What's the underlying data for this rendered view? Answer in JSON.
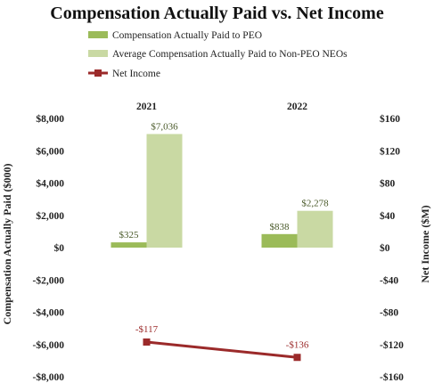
{
  "chart_data": {
    "type": "bar",
    "title": "Compensation Actually Paid vs. Net Income",
    "categories": [
      "2021",
      "2022"
    ],
    "series": [
      {
        "name": "Compensation Actually Paid to PEO",
        "kind": "bar",
        "axis": "left",
        "color": "#9bbb59",
        "values": [
          325,
          838
        ],
        "labels": [
          "$325",
          "$838"
        ]
      },
      {
        "name": "Average Compensation Actually Paid to Non-PEO NEOs",
        "kind": "bar",
        "axis": "left",
        "color": "#c9d9a3",
        "values": [
          7036,
          2278
        ],
        "labels": [
          "$7,036",
          "$2,278"
        ]
      },
      {
        "name": "Net Income",
        "kind": "line",
        "axis": "right",
        "color": "#9b2a2a",
        "values": [
          -117,
          -136
        ],
        "labels": [
          "-$117",
          "-$136"
        ]
      }
    ],
    "ylabel": "Compensation Actually Paid ($000)",
    "y2label": "Net Income ($M)",
    "ylim": [
      -8000,
      8000
    ],
    "y2lim": [
      -160,
      160
    ],
    "yticks": [
      8000,
      6000,
      4000,
      2000,
      0,
      -2000,
      -4000,
      -6000,
      -8000
    ],
    "yticklabels": [
      "$8,000",
      "$6,000",
      "$4,000",
      "$2,000",
      "$0",
      "-$2,000",
      "-$4,000",
      "-$6,000",
      "-$8,000"
    ],
    "y2ticks": [
      160,
      120,
      80,
      40,
      0,
      -40,
      -80,
      -120,
      -160
    ],
    "y2ticklabels": [
      "$160",
      "$120",
      "$80",
      "$40",
      "$0",
      "-$40",
      "-$80",
      "-$120",
      "-$160"
    ],
    "grid": false,
    "legend_position": "top-left"
  }
}
